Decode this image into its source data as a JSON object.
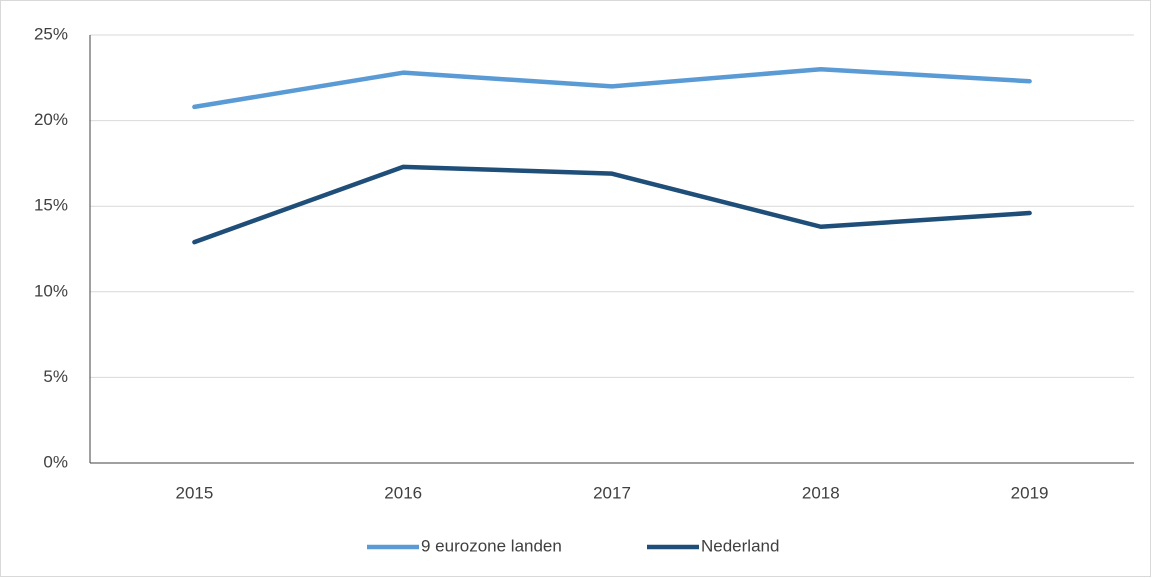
{
  "chart_data": {
    "type": "line",
    "categories": [
      "2015",
      "2016",
      "2017",
      "2018",
      "2019"
    ],
    "series": [
      {
        "name": "9 eurozone landen",
        "color": "#5b9bd5",
        "values": [
          20.8,
          22.8,
          22.0,
          23.0,
          22.3
        ]
      },
      {
        "name": "Nederland",
        "color": "#1f4e79",
        "values": [
          12.9,
          17.3,
          16.9,
          13.8,
          14.6
        ]
      }
    ],
    "ylim": [
      0,
      25
    ],
    "yticks": [
      {
        "value": 0,
        "label": "0%"
      },
      {
        "value": 5,
        "label": "5%"
      },
      {
        "value": 10,
        "label": "10%"
      },
      {
        "value": 15,
        "label": "15%"
      },
      {
        "value": 20,
        "label": "20%"
      },
      {
        "value": 25,
        "label": "25%"
      }
    ],
    "grid": true,
    "legend": "bottom"
  }
}
